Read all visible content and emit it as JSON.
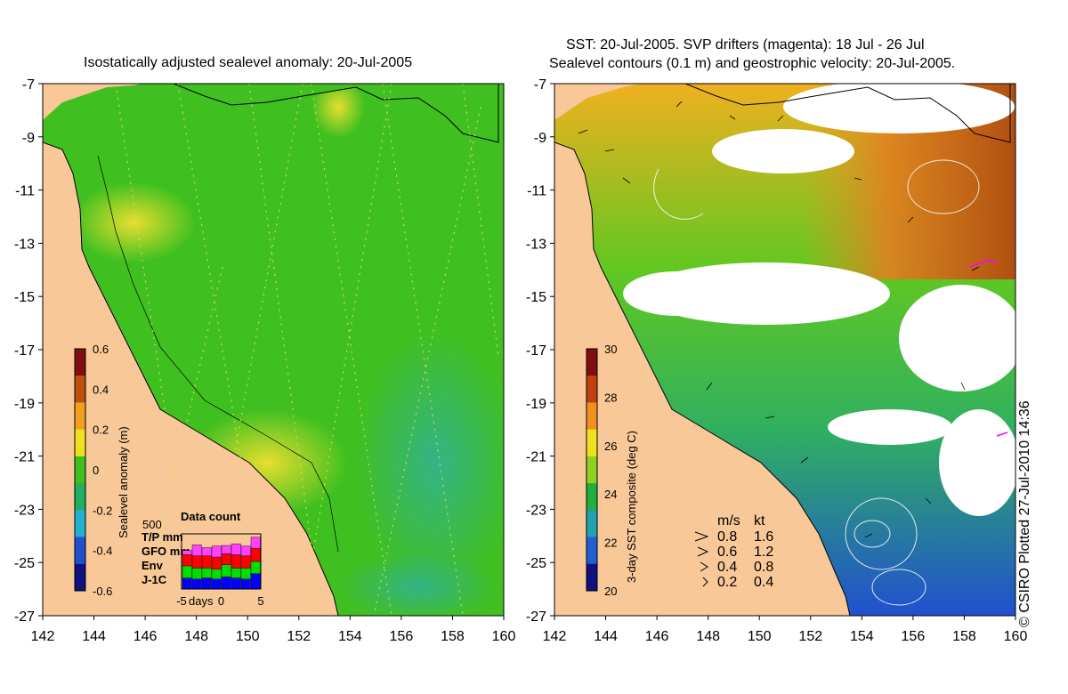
{
  "left_panel": {
    "title": "Isostatically adjusted sealevel anomaly: 20-Jul-2005",
    "colorbar": {
      "label": "Sealevel anomaly (m)",
      "ticks": [
        "0.6",
        "0.4",
        "0.2",
        "0",
        "-0.2",
        "-0.4",
        "-0.6"
      ],
      "colors": [
        "#801010",
        "#c05010",
        "#f0a020",
        "#f0e020",
        "#40c020",
        "#20b060",
        "#20b0d0",
        "#2050d0",
        "#101080"
      ]
    },
    "data_count": {
      "title": "Data count",
      "max_label": "500",
      "legend": [
        {
          "label": "T/P mm",
          "color": "#ff40ff"
        },
        {
          "label": "GFO mm",
          "color": "#ff0000"
        },
        {
          "label": "Env",
          "color": "#00e000"
        },
        {
          "label": "J-1C",
          "color": "#0000ff"
        }
      ],
      "x_label": "days",
      "x_ticks": [
        "-5",
        "0",
        "5"
      ],
      "bars": [
        [
          0.08,
          0.2,
          0.22,
          0.2
        ],
        [
          0.2,
          0.22,
          0.2,
          0.18
        ],
        [
          0.15,
          0.22,
          0.18,
          0.2
        ],
        [
          0.2,
          0.22,
          0.18,
          0.18
        ],
        [
          0.15,
          0.2,
          0.22,
          0.22
        ],
        [
          0.2,
          0.24,
          0.18,
          0.2
        ],
        [
          0.18,
          0.22,
          0.2,
          0.18
        ],
        [
          0.2,
          0.24,
          0.22,
          0.28
        ]
      ]
    }
  },
  "right_panel": {
    "title_line1": "SST: 20-Jul-2005. SVP drifters (magenta): 18 Jul - 26 Jul",
    "title_line2": "Sealevel contours (0.1 m) and geostrophic velocity: 20-Jul-2005.",
    "colorbar": {
      "label": "3-day SST composite (deg C)",
      "ticks": [
        "30",
        "28",
        "26",
        "24",
        "22",
        "20"
      ],
      "colors": [
        "#801010",
        "#c04010",
        "#f09020",
        "#f0e020",
        "#90d020",
        "#20b040",
        "#20a0b0",
        "#2060d0",
        "#101080"
      ]
    },
    "velocity_legend": {
      "header_ms": "m/s",
      "header_kt": "kt",
      "rows": [
        {
          "ms": "0.8",
          "kt": "1.6"
        },
        {
          "ms": "0.6",
          "kt": "1.2"
        },
        {
          "ms": "0.4",
          "kt": "0.8"
        },
        {
          "ms": "0.2",
          "kt": "0.4"
        }
      ]
    }
  },
  "axes": {
    "y_ticks": [
      "-7",
      "-9",
      "-11",
      "-13",
      "-15",
      "-17",
      "-19",
      "-21",
      "-23",
      "-25",
      "-27"
    ],
    "x_ticks": [
      "142",
      "144",
      "146",
      "148",
      "150",
      "152",
      "154",
      "156",
      "158",
      "160"
    ],
    "lat_range": [
      -27,
      -7
    ],
    "lon_range": [
      142,
      160
    ]
  },
  "colors": {
    "land": "#f8c898",
    "ocean_base": "#40c020",
    "ocean_high": "#d8e840",
    "ocean_low": "#30b070",
    "sst_warm": "#e08020",
    "sst_mid": "#40c020",
    "sst_cool": "#2060d0"
  },
  "copyright": "© CSIRO Plotted 27-Jul-2010 14:36"
}
